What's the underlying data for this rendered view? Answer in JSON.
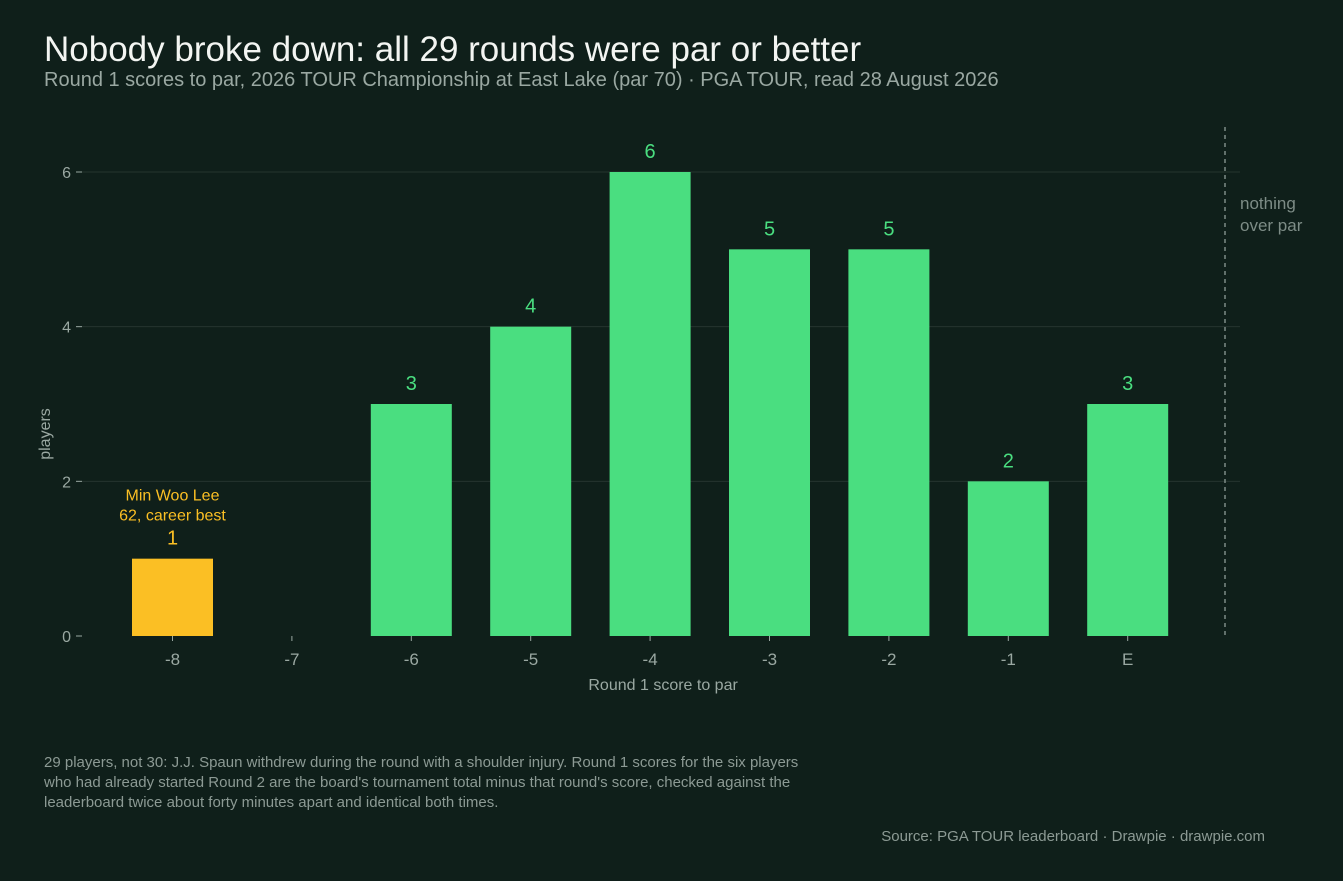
{
  "header": {
    "title": "Nobody broke down: all 29 rounds were par or better",
    "subtitle": "Round 1 scores to par, 2026 TOUR Championship at East Lake (par 70)  ·  PGA TOUR, read 28 August 2026"
  },
  "chart_data": {
    "type": "bar",
    "categories": [
      "-8",
      "-7",
      "-6",
      "-5",
      "-4",
      "-3",
      "-2",
      "-1",
      "E"
    ],
    "values": [
      1,
      0,
      3,
      4,
      6,
      5,
      5,
      2,
      3
    ],
    "xlabel": "Round 1 score to par",
    "ylabel": "players",
    "ylim": [
      0,
      6
    ],
    "yticks": [
      0,
      2,
      4,
      6
    ],
    "grid": true,
    "highlight": {
      "category": "-8",
      "label_line1": "Min Woo Lee",
      "label_line2": "62, career best"
    },
    "reference_line": {
      "label_line1": "nothing",
      "label_line2": "over par"
    },
    "colors": {
      "bar": "#4ade80",
      "highlight": "#fbbf24",
      "grid": "#25342f",
      "axis_text": "#9aa8a2",
      "reference": "#7d8c86"
    }
  },
  "footer": {
    "note": "29 players, not 30: J.J. Spaun withdrew during the round with a shoulder injury. Round 1 scores for the six players who had already started Round 2 are the board's tournament total minus that round's score, checked against the leaderboard twice about forty minutes apart and identical both times.",
    "source": "Source: PGA TOUR leaderboard  ·  Drawpie · drawpie.com"
  }
}
